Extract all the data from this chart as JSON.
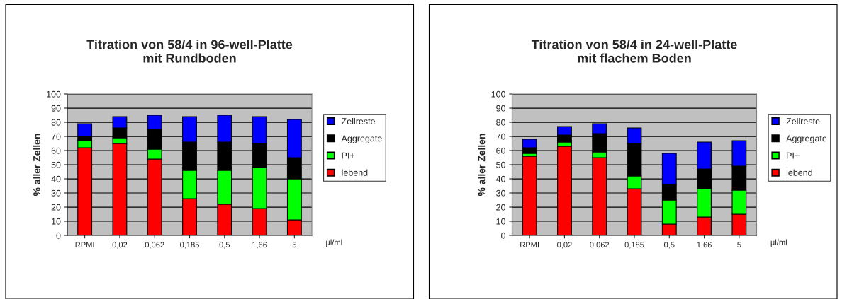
{
  "chart_data": [
    {
      "type": "bar",
      "title": "Titration von 58/4 in 96-well-Platte\nmit Rundboden",
      "ylabel": "% aller Zellen",
      "xlabel": "µl/ml",
      "categories": [
        "RPMI",
        "0,02",
        "0,062",
        "0,185",
        "0,5",
        "1,66",
        "5"
      ],
      "stacked": true,
      "ylim": [
        0,
        100
      ],
      "yticks": [
        0,
        10,
        20,
        30,
        40,
        50,
        60,
        70,
        80,
        90,
        100
      ],
      "grid": "y",
      "legend": "right",
      "series": [
        {
          "name": "lebend",
          "color": "#ff0000",
          "values": [
            62,
            65,
            54,
            26,
            22,
            19,
            11
          ]
        },
        {
          "name": "PI+",
          "color": "#00ff00",
          "values": [
            5,
            4,
            7,
            20,
            24,
            29,
            29
          ]
        },
        {
          "name": "Aggregate",
          "color": "#000000",
          "values": [
            3,
            7,
            14,
            20,
            20,
            17,
            15
          ]
        },
        {
          "name": "Zellreste",
          "color": "#0000ff",
          "values": [
            9,
            8,
            10,
            18,
            19,
            19,
            27
          ]
        }
      ]
    },
    {
      "type": "bar",
      "title": "Titration von 58/4 in 24-well-Platte\nmit flachem Boden",
      "ylabel": "% aller Zellen",
      "xlabel": "µl/ml",
      "categories": [
        "RPMI",
        "0,02",
        "0,062",
        "0,185",
        "0,5",
        "1,66",
        "5"
      ],
      "stacked": true,
      "ylim": [
        0,
        100
      ],
      "yticks": [
        0,
        10,
        20,
        30,
        40,
        50,
        60,
        70,
        80,
        90,
        100
      ],
      "grid": "y",
      "legend": "right",
      "series": [
        {
          "name": "lebend",
          "color": "#ff0000",
          "values": [
            56,
            63,
            55,
            33,
            8,
            13,
            15
          ]
        },
        {
          "name": "PI+",
          "color": "#00ff00",
          "values": [
            2,
            3,
            4,
            9,
            17,
            20,
            17
          ]
        },
        {
          "name": "Aggregate",
          "color": "#000000",
          "values": [
            4,
            5,
            13,
            23,
            11,
            14,
            17
          ]
        },
        {
          "name": "Zellreste",
          "color": "#0000ff",
          "values": [
            6,
            6,
            7,
            11,
            22,
            19,
            18
          ]
        }
      ]
    }
  ]
}
